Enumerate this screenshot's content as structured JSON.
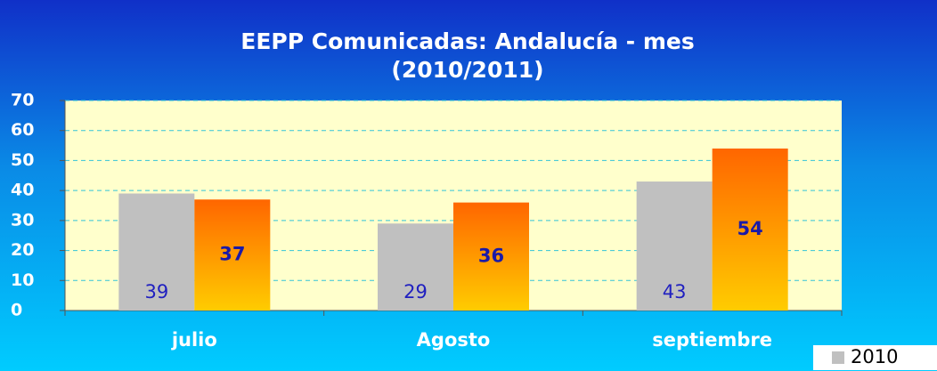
{
  "chart_data": {
    "type": "bar",
    "title": [
      "EEPP Comunicadas: Andalucía - mes",
      "(2010/2011)"
    ],
    "categories": [
      "julio",
      "Agosto",
      "septiembre"
    ],
    "series": [
      {
        "name": "2010",
        "color": "#c0c0c0",
        "values": [
          39,
          29,
          43
        ]
      },
      {
        "color": [
          "#ff6600",
          "#ffcc00"
        ],
        "values": [
          37,
          36,
          54
        ]
      }
    ],
    "ylim": [
      0,
      70
    ],
    "yticks": [
      0,
      10,
      20,
      30,
      40,
      50,
      60,
      70
    ],
    "grid": true,
    "legend": "bottom-right"
  }
}
